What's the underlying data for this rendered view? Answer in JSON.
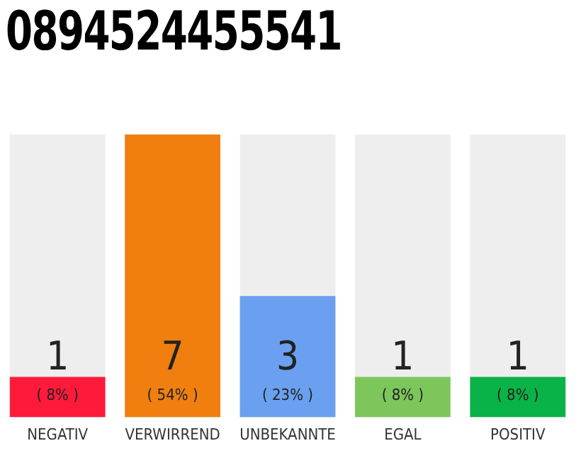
{
  "chart_data": {
    "type": "bar",
    "title": "0894524455541",
    "categories": [
      "NEGATIV",
      "VERWIRREND",
      "UNBEKANNTE",
      "EGAL",
      "POSITIV"
    ],
    "values": [
      1,
      7,
      3,
      1,
      1
    ],
    "colors": [
      "#ff1a3c",
      "#f07f0f",
      "#6aa0ef",
      "#7dc65c",
      "#0ab347"
    ],
    "ylim": [
      0,
      7
    ],
    "tick_labels": "x",
    "grid": false,
    "legend": false,
    "data_labels": true,
    "annotations": [
      "( 8% )",
      "( 54% )",
      "( 23% )",
      "( 8% )",
      "( 8% )"
    ]
  }
}
